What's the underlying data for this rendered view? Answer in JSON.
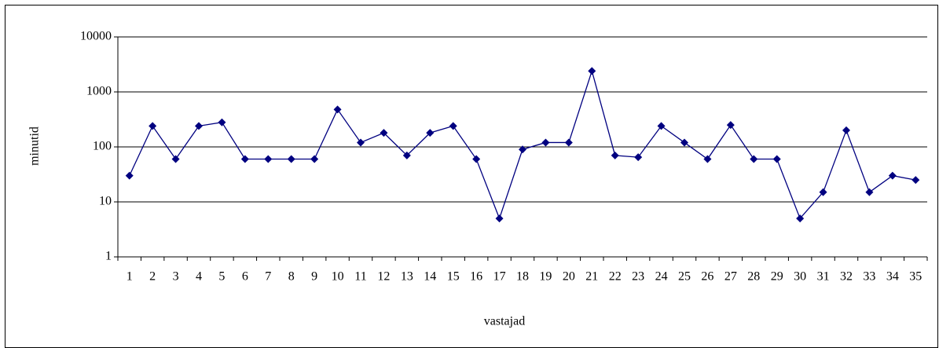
{
  "chart_data": {
    "type": "line",
    "x_label": "vastajad",
    "y_label": "minutid",
    "categories": [
      "1",
      "2",
      "3",
      "4",
      "5",
      "6",
      "7",
      "8",
      "9",
      "10",
      "11",
      "12",
      "13",
      "14",
      "15",
      "16",
      "17",
      "18",
      "19",
      "20",
      "21",
      "22",
      "23",
      "24",
      "25",
      "26",
      "27",
      "28",
      "29",
      "30",
      "31",
      "32",
      "33",
      "34",
      "35"
    ],
    "series": [
      {
        "color": "#000080",
        "values": [
          30,
          240,
          60,
          240,
          280,
          60,
          60,
          60,
          60,
          480,
          120,
          180,
          70,
          180,
          240,
          60,
          5,
          90,
          120,
          120,
          2400,
          70,
          65,
          240,
          120,
          60,
          250,
          60,
          60,
          5,
          15,
          200,
          15,
          30,
          25
        ]
      }
    ],
    "ylim": [
      1,
      10000
    ],
    "yticks": [
      1,
      10,
      100,
      1000,
      10000
    ],
    "log_scale": true,
    "grid": true
  }
}
